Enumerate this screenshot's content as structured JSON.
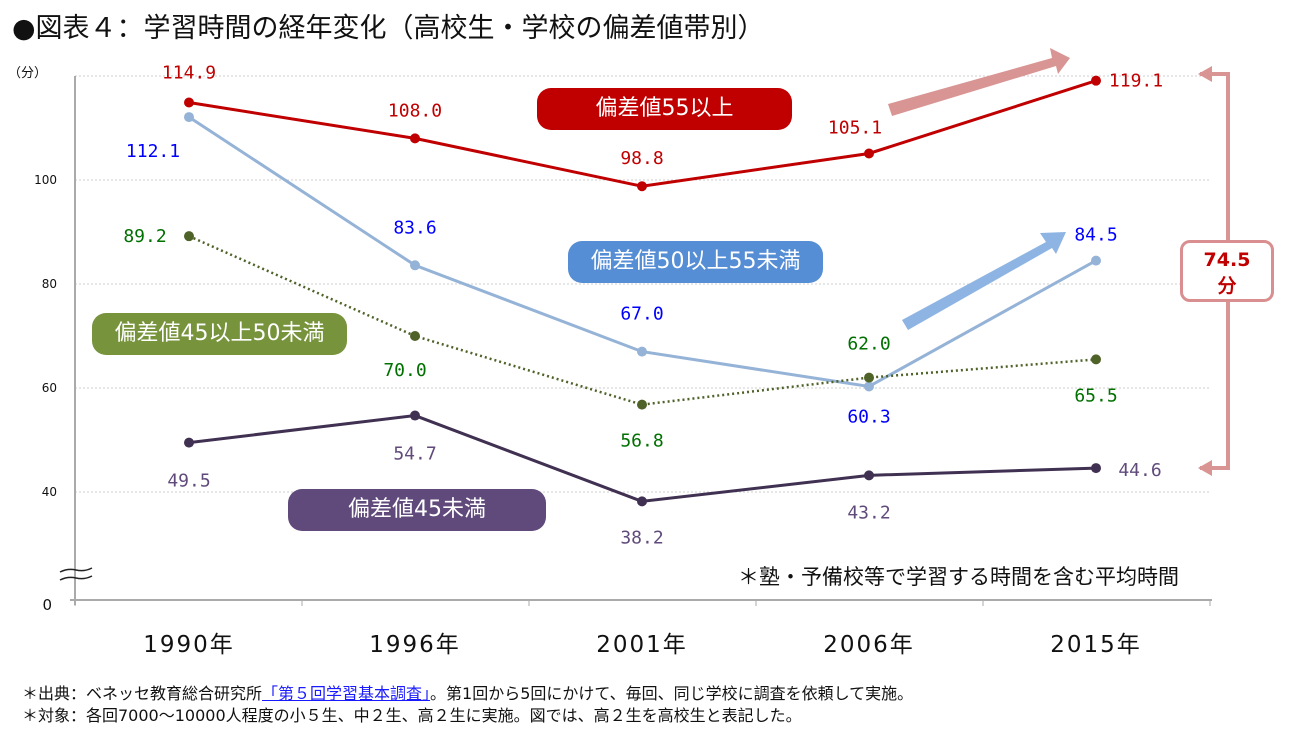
{
  "title": "●図表４：学習時間の経年変化（高校生・学校の偏差値帯別）",
  "note": "＊塾・予備校等で学習する時間を含む平均時間",
  "footnotes": {
    "source_prefix": "＊出典：ベネッセ教育総合研究所",
    "source_link": "「第５回学習基本調査」",
    "source_suffix": "。第1回から5回にかけて、毎回、同じ学校に調査を依頼して実施。",
    "target": "＊対象：各回7000～10000人程度の小５生、中２生、高２生に実施。図では、高２生を高校生と表記した。"
  },
  "difference": {
    "value": "74.5",
    "unit": "分"
  },
  "chart_data": {
    "type": "line",
    "ylabel": "（分）",
    "categories": [
      "1990年",
      "1996年",
      "2001年",
      "2006年",
      "2015年"
    ],
    "y_ticks": [
      "0",
      "40",
      "60",
      "80",
      "100"
    ],
    "ylim": [
      0,
      120
    ],
    "axis_break": "0-40",
    "grid": true,
    "series": [
      {
        "name": "偏差値55以上",
        "values": [
          114.9,
          108.0,
          98.8,
          105.1,
          119.1
        ],
        "labels": [
          "114.9",
          "108.0",
          "98.8",
          "105.1",
          "119.1"
        ],
        "color": "#c00000",
        "label_color": "#c00000",
        "pill_color": "#c00000",
        "style": "solid"
      },
      {
        "name": "偏差値50以上55未満",
        "values": [
          112.1,
          83.6,
          67.0,
          60.3,
          84.5
        ],
        "labels": [
          "112.1",
          "83.6",
          "67.0",
          "60.3",
          "84.5"
        ],
        "color": "#95b3d7",
        "label_color": "#0000ff",
        "pill_color": "#558ed5",
        "style": "solid"
      },
      {
        "name": "偏差値45以上50未満",
        "values": [
          89.2,
          70.0,
          56.8,
          62.0,
          65.5
        ],
        "labels": [
          "89.2",
          "70.0",
          "56.8",
          "62.0",
          "65.5"
        ],
        "color": "#4f6228",
        "label_color": "#007000",
        "pill_color": "#77933c",
        "style": "dotted"
      },
      {
        "name": "偏差値45未満",
        "values": [
          49.5,
          54.7,
          38.2,
          43.2,
          44.6
        ],
        "labels": [
          "49.5",
          "54.7",
          "38.2",
          "43.2",
          "44.6"
        ],
        "color": "#403152",
        "label_color": "#604a7b",
        "pill_color": "#604a7b",
        "style": "solid"
      }
    ]
  }
}
